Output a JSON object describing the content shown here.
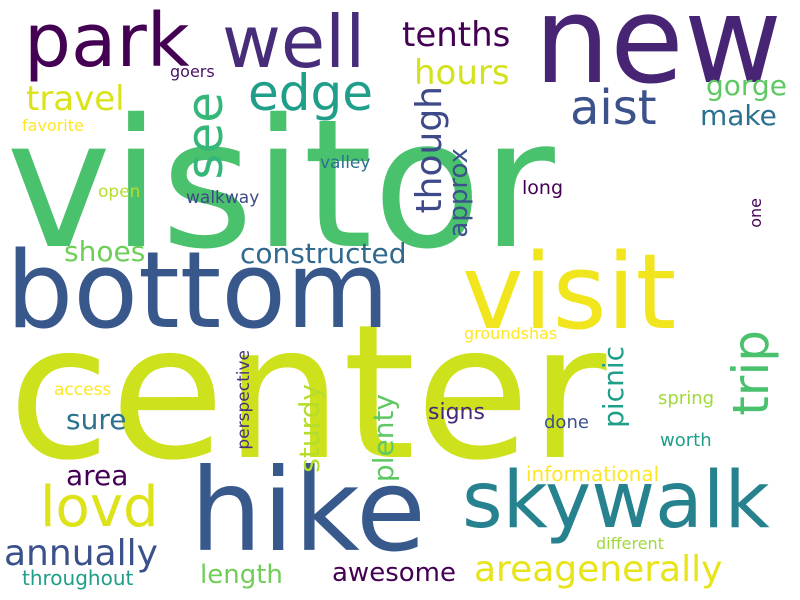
{
  "words": [
    {
      "text": "visitor",
      "color": "#4ac16d",
      "orientation": "horizontal"
    },
    {
      "text": "center",
      "color": "#cde11d",
      "orientation": "horizontal"
    },
    {
      "text": "new",
      "color": "#482475",
      "orientation": "horizontal"
    },
    {
      "text": "bottom",
      "color": "#38588c",
      "orientation": "horizontal"
    },
    {
      "text": "hike",
      "color": "#38598c",
      "orientation": "horizontal"
    },
    {
      "text": "visit",
      "color": "#f1e51d",
      "orientation": "horizontal"
    },
    {
      "text": "skywalk",
      "color": "#26828e",
      "orientation": "horizontal"
    },
    {
      "text": "park",
      "color": "#440154",
      "orientation": "horizontal"
    },
    {
      "text": "well",
      "color": "#472c7a",
      "orientation": "horizontal"
    },
    {
      "text": "edge",
      "color": "#1f9e89",
      "orientation": "horizontal"
    },
    {
      "text": "see",
      "color": "#35b779",
      "orientation": "vertical"
    },
    {
      "text": "trip",
      "color": "#4ac16d",
      "orientation": "vertical"
    },
    {
      "text": "aist",
      "color": "#3b528b",
      "orientation": "horizontal"
    },
    {
      "text": "lovd",
      "color": "#dde318",
      "orientation": "horizontal"
    },
    {
      "text": "areagenerally",
      "color": "#e7e419",
      "orientation": "horizontal"
    },
    {
      "text": "annually",
      "color": "#3b518b",
      "orientation": "horizontal"
    },
    {
      "text": "tenths",
      "color": "#440154",
      "orientation": "horizontal"
    },
    {
      "text": "hours",
      "color": "#d2e21b",
      "orientation": "horizontal"
    },
    {
      "text": "travel",
      "color": "#dae319",
      "orientation": "horizontal"
    },
    {
      "text": "though",
      "color": "#3e4989",
      "orientation": "vertical"
    },
    {
      "text": "gorge",
      "color": "#5ec962",
      "orientation": "horizontal"
    },
    {
      "text": "make",
      "color": "#2c728e",
      "orientation": "horizontal"
    },
    {
      "text": "constructed",
      "color": "#31688e",
      "orientation": "horizontal"
    },
    {
      "text": "approx",
      "color": "#3b528b",
      "orientation": "vertical"
    },
    {
      "text": "shoes",
      "color": "#6ece58",
      "orientation": "horizontal"
    },
    {
      "text": "picnic",
      "color": "#1f9e89",
      "orientation": "vertical"
    },
    {
      "text": "plenty",
      "color": "#5ec962",
      "orientation": "vertical"
    },
    {
      "text": "sturdy",
      "color": "#b5de2b",
      "orientation": "vertical"
    },
    {
      "text": "area",
      "color": "#440154",
      "orientation": "horizontal"
    },
    {
      "text": "sure",
      "color": "#2c728e",
      "orientation": "horizontal"
    },
    {
      "text": "awesome",
      "color": "#440154",
      "orientation": "horizontal"
    },
    {
      "text": "length",
      "color": "#6ece58",
      "orientation": "horizontal"
    },
    {
      "text": "throughout",
      "color": "#1f9e89",
      "orientation": "horizontal"
    },
    {
      "text": "signs",
      "color": "#482878",
      "orientation": "horizontal"
    },
    {
      "text": "informational",
      "color": "#fde725",
      "orientation": "horizontal"
    },
    {
      "text": "spring",
      "color": "#a0da39",
      "orientation": "horizontal"
    },
    {
      "text": "worth",
      "color": "#1f9e89",
      "orientation": "horizontal"
    },
    {
      "text": "done",
      "color": "#3b528b",
      "orientation": "horizontal"
    },
    {
      "text": "different",
      "color": "#a0da39",
      "orientation": "horizontal"
    },
    {
      "text": "perspective",
      "color": "#46337e",
      "orientation": "vertical"
    },
    {
      "text": "access",
      "color": "#fde725",
      "orientation": "horizontal"
    },
    {
      "text": "groundshas",
      "color": "#fde725",
      "orientation": "horizontal"
    },
    {
      "text": "goers",
      "color": "#471365",
      "orientation": "horizontal"
    },
    {
      "text": "favorite",
      "color": "#fde725",
      "orientation": "horizontal"
    },
    {
      "text": "open",
      "color": "#b5de2b",
      "orientation": "horizontal"
    },
    {
      "text": "walkway",
      "color": "#3e4989",
      "orientation": "horizontal"
    },
    {
      "text": "valley",
      "color": "#2c728e",
      "orientation": "horizontal"
    },
    {
      "text": "long",
      "color": "#440154",
      "orientation": "horizontal"
    },
    {
      "text": "one",
      "color": "#440154",
      "orientation": "vertical"
    }
  ]
}
